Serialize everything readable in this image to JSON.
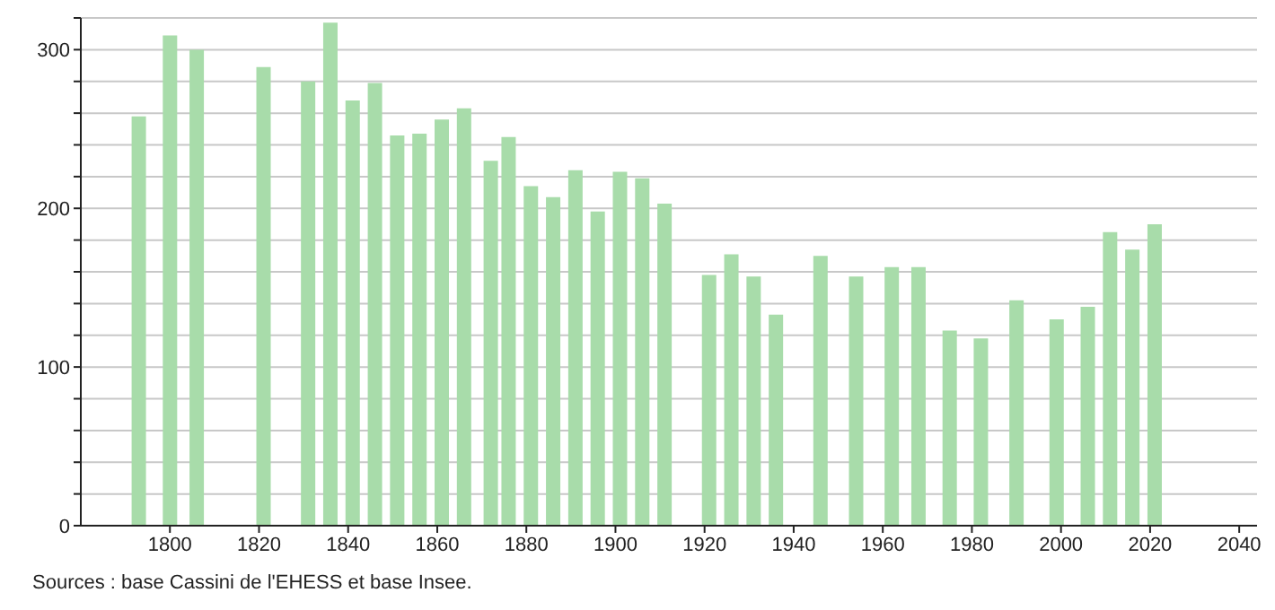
{
  "chart_data": {
    "type": "bar",
    "x": [
      1793,
      1800,
      1806,
      1821,
      1831,
      1836,
      1841,
      1846,
      1851,
      1856,
      1861,
      1866,
      1872,
      1876,
      1881,
      1886,
      1891,
      1896,
      1901,
      1906,
      1911,
      1921,
      1926,
      1931,
      1936,
      1946,
      1954,
      1962,
      1968,
      1975,
      1982,
      1990,
      1999,
      2006,
      2011,
      2016,
      2021
    ],
    "values": [
      258,
      309,
      300,
      289,
      280,
      317,
      268,
      279,
      246,
      247,
      256,
      263,
      230,
      245,
      214,
      207,
      224,
      198,
      223,
      219,
      203,
      158,
      171,
      157,
      133,
      170,
      157,
      163,
      163,
      123,
      118,
      142,
      130,
      138,
      185,
      174,
      190
    ],
    "color": "#a8dcaa",
    "xlim": [
      1780,
      2044
    ],
    "xticks": [
      1800,
      1820,
      1840,
      1860,
      1880,
      1900,
      1920,
      1940,
      1960,
      1980,
      2000,
      2020,
      2040
    ],
    "ylim": [
      0,
      320
    ],
    "yticks": [
      0,
      {
        "value": 20,
        "label": null
      },
      {
        "value": 40,
        "label": null
      },
      {
        "value": 60,
        "label": null
      },
      {
        "value": 80,
        "label": null
      },
      100,
      {
        "value": 120,
        "label": null
      },
      {
        "value": 140,
        "label": null
      },
      {
        "value": 160,
        "label": null
      },
      {
        "value": 180,
        "label": null
      },
      200,
      {
        "value": 220,
        "label": null
      },
      {
        "value": 240,
        "label": null
      },
      {
        "value": 260,
        "label": null
      },
      {
        "value": 280,
        "label": null
      },
      300,
      {
        "value": 320,
        "label": null
      }
    ],
    "grid": "y",
    "annotations": [
      "Sources : base Cassini de l'EHESS et base Insee."
    ]
  }
}
